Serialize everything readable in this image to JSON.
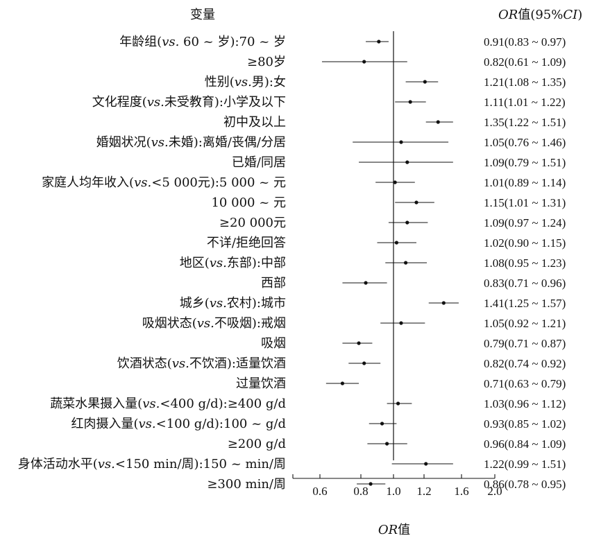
{
  "header": {
    "variable_label": "变量",
    "or_ci_prefix": "OR",
    "or_ci_mid": "值(95%",
    "or_ci_ci": "CI",
    "or_ci_suffix": ")"
  },
  "xaxis": {
    "label_prefix": "OR",
    "label_suffix": "值"
  },
  "chart_data": {
    "type": "forest",
    "reference_line": 1.0,
    "xlim": [
      0.4,
      2.0
    ],
    "xticks": [
      "0.6",
      "0.8",
      "1.0",
      "1.2",
      "1.6",
      "2.0"
    ],
    "rows": [
      {
        "label": "年龄组(vs. 60 ~ 岁):70 ~ 岁",
        "or": 0.91,
        "lo": 0.83,
        "hi": 0.97,
        "text": "0.91(0.83 ~ 0.97)"
      },
      {
        "label": "≥80岁",
        "or": 0.82,
        "lo": 0.61,
        "hi": 1.09,
        "text": "0.82(0.61 ~ 1.09)"
      },
      {
        "label": "性别(vs.男):女",
        "or": 1.21,
        "lo": 1.08,
        "hi": 1.35,
        "text": "1.21(1.08 ~ 1.35)"
      },
      {
        "label": "文化程度(vs.未受教育):小学及以下",
        "or": 1.11,
        "lo": 1.01,
        "hi": 1.22,
        "text": "1.11(1.01 ~ 1.22)"
      },
      {
        "label": "初中及以上",
        "or": 1.35,
        "lo": 1.22,
        "hi": 1.51,
        "text": "1.35(1.22 ~ 1.51)"
      },
      {
        "label": "婚姻状况(vs.未婚):离婚/丧偶/分居",
        "or": 1.05,
        "lo": 0.76,
        "hi": 1.46,
        "text": "1.05(0.76 ~ 1.46)"
      },
      {
        "label": "已婚/同居",
        "or": 1.09,
        "lo": 0.79,
        "hi": 1.51,
        "text": "1.09(0.79 ~ 1.51)"
      },
      {
        "label": "家庭人均年收入(vs.<5 000元):5 000 ~ 元",
        "or": 1.01,
        "lo": 0.89,
        "hi": 1.14,
        "text": "1.01(0.89 ~ 1.14)"
      },
      {
        "label": "10 000 ~ 元",
        "or": 1.15,
        "lo": 1.01,
        "hi": 1.31,
        "text": "1.15(1.01 ~ 1.31)"
      },
      {
        "label": "≥20 000元",
        "or": 1.09,
        "lo": 0.97,
        "hi": 1.24,
        "text": "1.09(0.97 ~ 1.24)"
      },
      {
        "label": "不详/拒绝回答",
        "or": 1.02,
        "lo": 0.9,
        "hi": 1.15,
        "text": "1.02(0.90 ~ 1.15)"
      },
      {
        "label": "地区(vs.东部):中部",
        "or": 1.08,
        "lo": 0.95,
        "hi": 1.23,
        "text": "1.08(0.95 ~ 1.23)"
      },
      {
        "label": "西部",
        "or": 0.83,
        "lo": 0.71,
        "hi": 0.96,
        "text": "0.83(0.71 ~ 0.96)"
      },
      {
        "label": "城乡(vs.农村):城市",
        "or": 1.41,
        "lo": 1.25,
        "hi": 1.57,
        "text": "1.41(1.25 ~ 1.57)"
      },
      {
        "label": "吸烟状态(vs.不吸烟):戒烟",
        "or": 1.05,
        "lo": 0.92,
        "hi": 1.21,
        "text": "1.05(0.92 ~ 1.21)"
      },
      {
        "label": "吸烟",
        "or": 0.79,
        "lo": 0.71,
        "hi": 0.87,
        "text": "0.79(0.71 ~ 0.87)"
      },
      {
        "label": "饮酒状态(vs.不饮酒):适量饮酒",
        "or": 0.82,
        "lo": 0.74,
        "hi": 0.92,
        "text": "0.82(0.74 ~ 0.92)"
      },
      {
        "label": "过量饮酒",
        "or": 0.71,
        "lo": 0.63,
        "hi": 0.79,
        "text": "0.71(0.63 ~ 0.79)"
      },
      {
        "label": "蔬菜水果摄入量(vs.<400 g/d):≥400 g/d",
        "or": 1.03,
        "lo": 0.96,
        "hi": 1.12,
        "text": "1.03(0.96 ~ 1.12)"
      },
      {
        "label": "红肉摄入量(vs.<100 g/d):100 ~ g/d",
        "or": 0.93,
        "lo": 0.85,
        "hi": 1.02,
        "text": "0.93(0.85 ~ 1.02)"
      },
      {
        "label": "≥200 g/d",
        "or": 0.96,
        "lo": 0.84,
        "hi": 1.09,
        "text": "0.96(0.84 ~ 1.09)"
      },
      {
        "label": "身体活动水平(vs.<150 min/周):150 ~ min/周",
        "or": 1.22,
        "lo": 0.99,
        "hi": 1.51,
        "text": "1.22(0.99 ~ 1.51)"
      },
      {
        "label": "≥300 min/周",
        "or": 0.86,
        "lo": 0.78,
        "hi": 0.95,
        "text": "0.86(0.78 ~ 0.95)"
      }
    ]
  }
}
